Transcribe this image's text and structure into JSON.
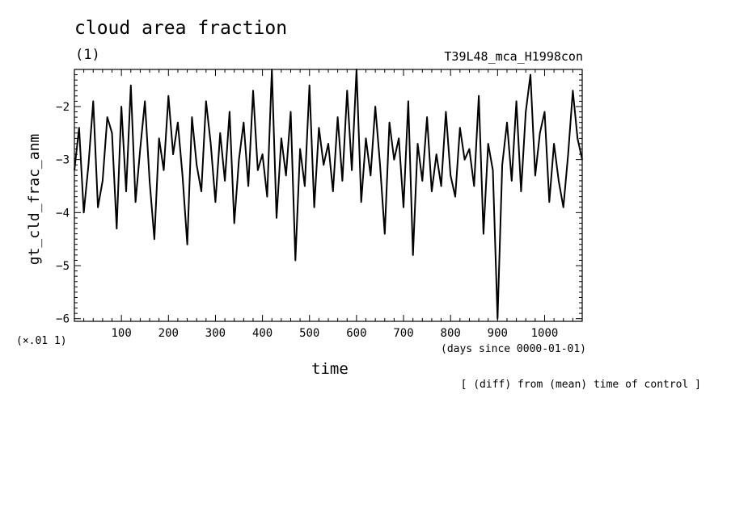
{
  "chart_data": {
    "type": "line",
    "title": "cloud area fraction",
    "units": "(1)",
    "run_name": "T39L48_mca_H1998con",
    "ylabel": "gt_cld_frac_anm",
    "xlabel": "time",
    "x_units": "(days since 0000-01-01)",
    "y_scale_note": "(×.01 1)",
    "note": "[ (diff) from (mean) time of control ]",
    "xlim": [
      0,
      1080
    ],
    "ylim": [
      -6.05,
      -1.3
    ],
    "x_ticks": [
      100,
      200,
      300,
      400,
      500,
      600,
      700,
      800,
      900,
      1000
    ],
    "y_ticks": [
      -6,
      -5,
      -4,
      -3,
      -2
    ],
    "series": [
      {
        "x": [
          0,
          10,
          20,
          30,
          40,
          50,
          60,
          70,
          80,
          90,
          100,
          110,
          120,
          130,
          140,
          150,
          160,
          170,
          180,
          190,
          200,
          210,
          220,
          230,
          240,
          250,
          260,
          270,
          280,
          290,
          300,
          310,
          320,
          330,
          340,
          350,
          360,
          370,
          380,
          390,
          400,
          410,
          420,
          430,
          440,
          450,
          460,
          470,
          480,
          490,
          500,
          510,
          520,
          530,
          540,
          550,
          560,
          570,
          580,
          590,
          600,
          610,
          620,
          630,
          640,
          650,
          660,
          670,
          680,
          690,
          700,
          710,
          720,
          730,
          740,
          750,
          760,
          770,
          780,
          790,
          800,
          810,
          820,
          830,
          840,
          850,
          860,
          870,
          880,
          890,
          900,
          910,
          920,
          930,
          940,
          950,
          960,
          970,
          980,
          990,
          1000,
          1010,
          1020,
          1030,
          1040,
          1050,
          1060,
          1070,
          1080
        ],
        "values": [
          -3.2,
          -2.4,
          -4.0,
          -3.1,
          -1.9,
          -3.9,
          -3.4,
          -2.2,
          -2.5,
          -4.3,
          -2.0,
          -3.6,
          -1.6,
          -3.8,
          -2.8,
          -1.9,
          -3.4,
          -4.5,
          -2.6,
          -3.2,
          -1.8,
          -2.9,
          -2.3,
          -3.3,
          -4.6,
          -2.2,
          -3.1,
          -3.6,
          -1.9,
          -2.7,
          -3.8,
          -2.5,
          -3.4,
          -2.1,
          -4.2,
          -3.0,
          -2.3,
          -3.5,
          -1.7,
          -3.2,
          -2.9,
          -3.7,
          -1.3,
          -4.1,
          -2.6,
          -3.3,
          -2.1,
          -4.9,
          -2.8,
          -3.5,
          -1.6,
          -3.9,
          -2.4,
          -3.1,
          -2.7,
          -3.6,
          -2.2,
          -3.4,
          -1.7,
          -3.2,
          -1.3,
          -3.8,
          -2.6,
          -3.3,
          -2.0,
          -3.1,
          -4.4,
          -2.3,
          -3.0,
          -2.6,
          -3.9,
          -1.9,
          -4.8,
          -2.7,
          -3.4,
          -2.2,
          -3.6,
          -2.9,
          -3.5,
          -2.1,
          -3.3,
          -3.7,
          -2.4,
          -3.0,
          -2.8,
          -3.5,
          -1.8,
          -4.4,
          -2.7,
          -3.2,
          -6.0,
          -3.1,
          -2.3,
          -3.4,
          -1.9,
          -3.6,
          -2.1,
          -1.4,
          -3.3,
          -2.5,
          -2.1,
          -3.8,
          -2.7,
          -3.4,
          -3.9,
          -2.9,
          -1.7,
          -2.6,
          -3.0
        ]
      }
    ]
  }
}
